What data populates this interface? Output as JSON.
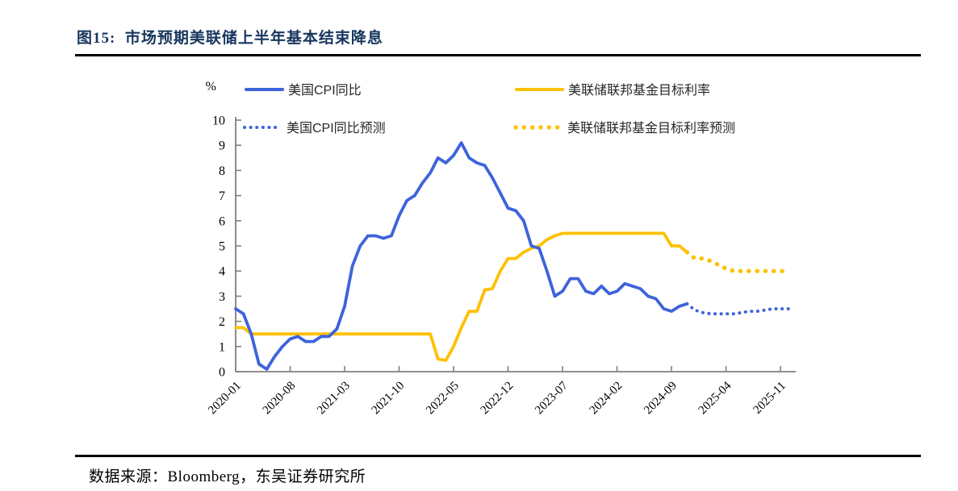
{
  "figure": {
    "title": "图15:  市场预期美联储上半年基本结束降息",
    "source": "数据来源：Bloomberg，东吴证券研究所"
  },
  "colors": {
    "title_navy": "#17365D",
    "cpi_blue": "#3E63DB",
    "fed_yellow": "#FFC000",
    "axis_gray": "#808080",
    "rule_black": "#000000"
  },
  "chart_data": {
    "type": "line",
    "unit_label": "%",
    "ylim": [
      0,
      10
    ],
    "y_ticks": [
      0,
      1,
      2,
      3,
      4,
      5,
      6,
      7,
      8,
      9,
      10
    ],
    "x_start": "2020-01",
    "x_end": "2025-12",
    "x_months_per_tick": 7,
    "x_tick_labels": [
      "2020-01",
      "2020-08",
      "2021-03",
      "2021-10",
      "2022-05",
      "2022-12",
      "2023-07",
      "2024-02",
      "2024-09",
      "2025-04",
      "2025-11"
    ],
    "x_tick_month_index": [
      0,
      7,
      14,
      21,
      28,
      35,
      42,
      49,
      56,
      63,
      70
    ],
    "grid": "off",
    "legend_position": "top",
    "series": [
      {
        "key": "cpi_yoy",
        "name": "美国CPI同比",
        "style": "solid",
        "color": "#3E63DB",
        "dot_scale": 1,
        "start_month_index": 0,
        "values": [
          2.5,
          2.3,
          1.5,
          0.3,
          0.1,
          0.6,
          1.0,
          1.3,
          1.4,
          1.2,
          1.2,
          1.4,
          1.4,
          1.7,
          2.6,
          4.2,
          5.0,
          5.4,
          5.4,
          5.3,
          5.4,
          6.2,
          6.8,
          7.0,
          7.5,
          7.9,
          8.5,
          8.3,
          8.6,
          9.1,
          8.5,
          8.3,
          8.2,
          7.7,
          7.1,
          6.5,
          6.4,
          6.0,
          5.0,
          4.9,
          4.0,
          3.0,
          3.2,
          3.7,
          3.7,
          3.2,
          3.1,
          3.4,
          3.1,
          3.2,
          3.5,
          3.4,
          3.3,
          3.0,
          2.9,
          2.5,
          2.4,
          2.6,
          2.7
        ]
      },
      {
        "key": "fed_target",
        "name": "美联储联邦基金目标利率",
        "style": "solid",
        "color": "#FFC000",
        "dot_scale": 1,
        "start_month_index": 0,
        "values": [
          1.75,
          1.75,
          1.5,
          1.5,
          1.5,
          1.5,
          1.5,
          1.5,
          1.5,
          1.5,
          1.5,
          1.5,
          1.5,
          1.5,
          1.5,
          1.5,
          1.5,
          1.5,
          1.5,
          1.5,
          1.5,
          1.5,
          1.5,
          1.5,
          1.5,
          1.5,
          0.5,
          0.45,
          1.0,
          1.75,
          2.4,
          2.4,
          3.25,
          3.3,
          4.0,
          4.5,
          4.5,
          4.75,
          4.9,
          5.0,
          5.25,
          5.4,
          5.5,
          5.5,
          5.5,
          5.5,
          5.5,
          5.5,
          5.5,
          5.5,
          5.5,
          5.5,
          5.5,
          5.5,
          5.5,
          5.5,
          5.0,
          5.0,
          4.75
        ]
      },
      {
        "key": "cpi_yoy_forecast",
        "name": "美国CPI同比预测",
        "style": "dotted",
        "color": "#3E63DB",
        "dot_scale": 1,
        "start_month_index": 58,
        "values": [
          2.7,
          2.45,
          2.35,
          2.3,
          2.3,
          2.3,
          2.3,
          2.35,
          2.4,
          2.4,
          2.45,
          2.5,
          2.5,
          2.5
        ]
      },
      {
        "key": "fed_target_forecast",
        "name": "美联储联邦基金目标利率预测",
        "style": "dotted",
        "color": "#FFC000",
        "dot_scale": 1.4,
        "start_month_index": 58,
        "values": [
          4.75,
          4.5,
          4.5,
          4.4,
          4.25,
          4.1,
          4.0,
          4.0,
          4.0,
          4.0,
          4.0,
          4.0,
          4.0,
          4.0
        ]
      }
    ]
  }
}
